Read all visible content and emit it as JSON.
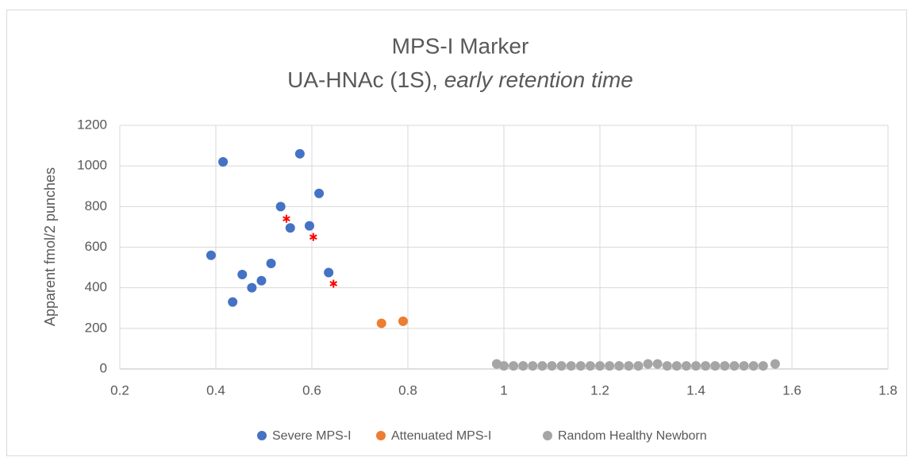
{
  "chart_data": {
    "type": "scatter",
    "title": "MPS-I Marker",
    "subtitle": "UA-HNAc (1S),",
    "subtitle_italic": "early retention time",
    "ylabel": "Apparent fmol/2 punches",
    "xlim": [
      0.2,
      1.8
    ],
    "xticks": [
      0.2,
      0.4,
      0.6,
      0.8,
      1,
      1.2,
      1.4,
      1.6,
      1.8
    ],
    "ylim": [
      0,
      1200
    ],
    "yticks": [
      0,
      200,
      400,
      600,
      800,
      1000,
      1200
    ],
    "grid": true,
    "legend": "bottom",
    "series": [
      {
        "name": "Severe MPS-I",
        "color": "#4472c4",
        "marker": "circle",
        "x": [
          0.39,
          0.415,
          0.435,
          0.455,
          0.475,
          0.495,
          0.515,
          0.535,
          0.555,
          0.575,
          0.595,
          0.615,
          0.635
        ],
        "values": [
          560,
          1020,
          330,
          465,
          400,
          435,
          520,
          800,
          695,
          1060,
          705,
          865,
          475
        ]
      },
      {
        "name": "Attenuated MPS-I",
        "color": "#ed7d31",
        "marker": "circle",
        "x": [
          0.745,
          0.79
        ],
        "values": [
          225,
          235
        ]
      },
      {
        "name": "Random Healthy Newborn",
        "color": "#a5a5a5",
        "marker": "circle",
        "x": [
          0.985,
          1.0,
          1.02,
          1.04,
          1.06,
          1.08,
          1.1,
          1.12,
          1.14,
          1.16,
          1.18,
          1.2,
          1.22,
          1.24,
          1.26,
          1.28,
          1.3,
          1.32,
          1.34,
          1.36,
          1.38,
          1.4,
          1.42,
          1.44,
          1.46,
          1.48,
          1.5,
          1.52,
          1.54,
          1.565
        ],
        "values": [
          25,
          15,
          15,
          15,
          15,
          15,
          15,
          15,
          15,
          15,
          15,
          15,
          15,
          15,
          15,
          15,
          25,
          25,
          15,
          15,
          15,
          15,
          15,
          15,
          15,
          15,
          15,
          15,
          15,
          25
        ]
      },
      {
        "color": "#ff0000",
        "marker": "asterisk",
        "x": [
          0.547,
          0.603,
          0.645
        ],
        "values": [
          740,
          650,
          420
        ]
      }
    ]
  }
}
